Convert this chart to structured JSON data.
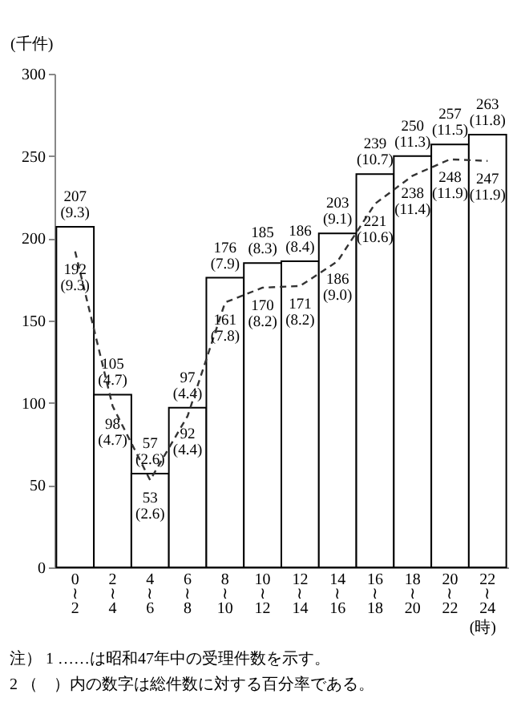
{
  "chart_data": {
    "type": "bar",
    "ylabel": "(千件)",
    "xlabel": "(時)",
    "categories": [
      "0\n≀\n2",
      "2\n≀\n4",
      "4\n≀\n6",
      "6\n≀\n8",
      "8\n≀\n10",
      "10\n≀\n12",
      "12\n≀\n14",
      "14\n≀\n16",
      "16\n≀\n18",
      "18\n≀\n20",
      "20\n≀\n22",
      "22\n≀\n24"
    ],
    "series": [
      {
        "color": "#ffffff",
        "values": [
          207,
          105,
          57,
          97,
          176,
          185,
          186,
          203,
          239,
          250,
          257,
          263
        ],
        "value_labels": [
          "207\n(9.3)",
          "105\n(4.7)",
          "57\n(2.6)",
          "97\n(4.4)",
          "176\n(7.9)",
          "185\n(8.3)",
          "186\n(8.4)",
          "203\n(9.1)",
          "239\n(10.7)",
          "250\n(11.3)",
          "257\n(11.5)",
          "263\n(11.8)"
        ]
      },
      {
        "type": "line",
        "color": "#333333",
        "line_style": "dashed",
        "marker": "none",
        "values": [
          192,
          98,
          53,
          92,
          161,
          170,
          171,
          186,
          221,
          238,
          248,
          247
        ],
        "value_labels": [
          "192\n(9.3)",
          "98\n(4.7)",
          "53\n(2.6)",
          "92\n(4.4)",
          "161\n(7.8)",
          "170\n(8.2)",
          "171\n(8.2)",
          "186\n(9.0)",
          "221\n(10.6)",
          "238\n(11.4)",
          "248\n(11.9)",
          "247\n(11.9)"
        ]
      }
    ],
    "ylim": [
      0,
      300
    ],
    "yticks": [
      0,
      50,
      100,
      150,
      200,
      250,
      300
    ],
    "grid": false,
    "annotations": [
      "注） 1 ……は昭和47年中の受理件数を示す。",
      "2 （　）内の数字は総件数に対する百分率である。"
    ]
  }
}
